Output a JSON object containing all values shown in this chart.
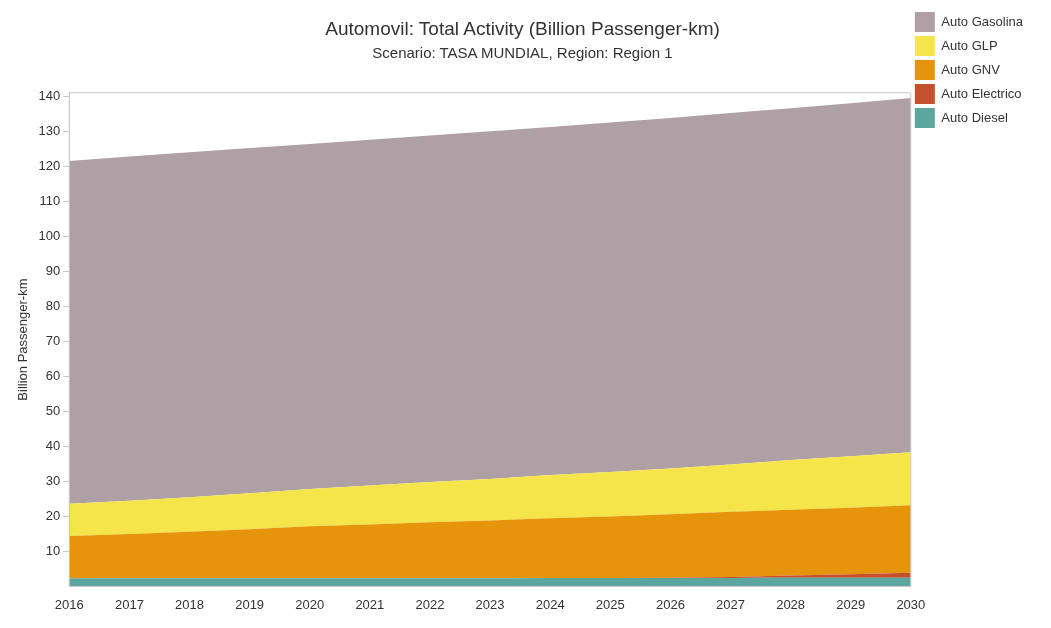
{
  "chart_data": {
    "type": "area",
    "title": "Automovil: Total Activity (Billion Passenger-km)",
    "subtitle": "Scenario: TASA MUNDIAL, Region: Region 1",
    "ylabel": "Billion Passenger-km",
    "stacked": true,
    "legend": "top right",
    "grid": false,
    "x": [
      2016,
      2017,
      2018,
      2019,
      2020,
      2021,
      2022,
      2023,
      2024,
      2025,
      2026,
      2027,
      2028,
      2029,
      2030
    ],
    "xlim": [
      2016,
      2030
    ],
    "xticks": [
      2016,
      2017,
      2018,
      2019,
      2020,
      2021,
      2022,
      2023,
      2024,
      2025,
      2026,
      2027,
      2028,
      2029,
      2030
    ],
    "ylim": [
      0,
      141
    ],
    "yticks": [
      10,
      20,
      30,
      40,
      50,
      60,
      70,
      80,
      90,
      100,
      110,
      120,
      130,
      140
    ],
    "series": [
      {
        "name": "Auto Diesel",
        "color": "#5ba7a0",
        "values": [
          2.3,
          2.3,
          2.3,
          2.3,
          2.3,
          2.3,
          2.3,
          2.3,
          2.4,
          2.4,
          2.4,
          2.4,
          2.5,
          2.5,
          2.5
        ]
      },
      {
        "name": "Auto Electrico",
        "color": "#c4512b",
        "values": [
          0,
          0,
          0,
          0,
          0,
          0,
          0,
          0,
          0,
          0,
          0.1,
          0.3,
          0.6,
          1.0,
          1.4
        ]
      },
      {
        "name": "Auto GNV",
        "color": "#e5940b",
        "values": [
          12.1,
          12.7,
          13.3,
          14.0,
          14.9,
          15.4,
          16.0,
          16.5,
          17.1,
          17.6,
          18.1,
          18.6,
          18.8,
          19.0,
          19.3
        ]
      },
      {
        "name": "Auto GLP",
        "color": "#f5e54a",
        "values": [
          9.2,
          9.5,
          9.9,
          10.3,
          10.6,
          11.1,
          11.5,
          11.9,
          12.3,
          12.7,
          13.1,
          13.5,
          14.2,
          14.7,
          15.1
        ]
      },
      {
        "name": "Auto Gasolina",
        "color": "#afa0a5",
        "values": [
          97.9,
          98.3,
          98.5,
          98.6,
          98.6,
          98.8,
          99.0,
          99.3,
          99.4,
          99.8,
          100.1,
          100.4,
          100.5,
          100.8,
          101.2
        ]
      }
    ]
  }
}
